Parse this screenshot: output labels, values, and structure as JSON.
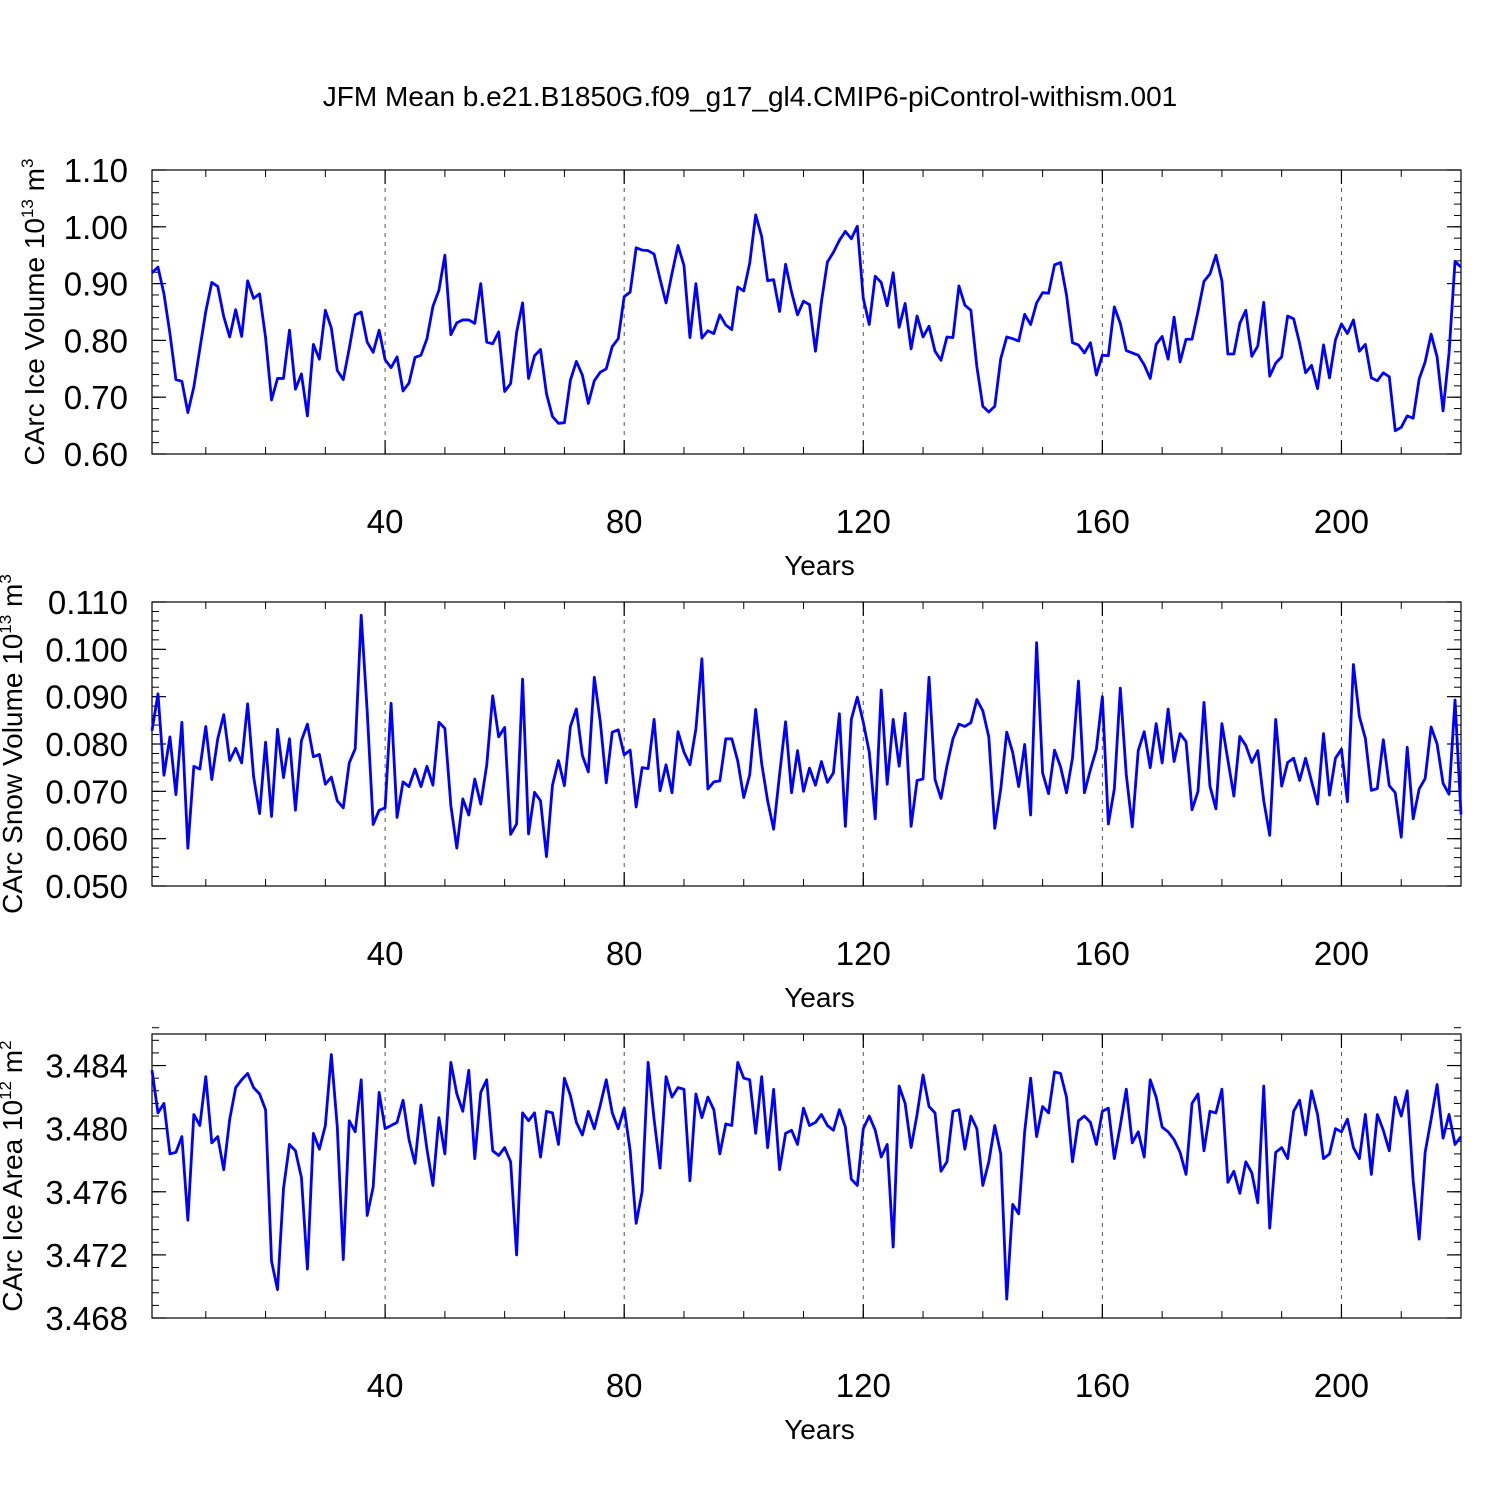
{
  "title": "JFM Mean b.e21.B1850G.f09_g17_gl4.CMIP6-piControl-withism.001",
  "chart_data": [
    {
      "type": "line",
      "xlabel": "Years",
      "ylabel": {
        "name": "CArc Ice Volume",
        "scale": "10",
        "exponent": "13",
        "unit": "m",
        "unit_exponent": "3"
      },
      "xlim": [
        1,
        220
      ],
      "ylim": [
        0.6,
        1.1
      ],
      "x_ticks": [
        "40",
        "80",
        "120",
        "160",
        "200"
      ],
      "y_ticks": [
        "0.60",
        "0.70",
        "0.80",
        "0.90",
        "1.00",
        "1.10"
      ],
      "x_gridlines": [
        40,
        80,
        120,
        160,
        200
      ],
      "line_color": "#0000ff",
      "series": [
        {
          "x_start": 1,
          "values": [
            0.919,
            0.929,
            0.882,
            0.812,
            0.731,
            0.728,
            0.673,
            0.718,
            0.785,
            0.851,
            0.902,
            0.895,
            0.842,
            0.806,
            0.854,
            0.807,
            0.905,
            0.874,
            0.882,
            0.805,
            0.695,
            0.733,
            0.733,
            0.818,
            0.714,
            0.741,
            0.667,
            0.793,
            0.767,
            0.853,
            0.822,
            0.747,
            0.731,
            0.786,
            0.845,
            0.85,
            0.797,
            0.779,
            0.818,
            0.766,
            0.752,
            0.771,
            0.711,
            0.725,
            0.77,
            0.774,
            0.803,
            0.86,
            0.888,
            0.95,
            0.81,
            0.831,
            0.836,
            0.836,
            0.83,
            0.9,
            0.797,
            0.794,
            0.815,
            0.71,
            0.724,
            0.814,
            0.866,
            0.733,
            0.773,
            0.784,
            0.706,
            0.666,
            0.654,
            0.655,
            0.73,
            0.763,
            0.739,
            0.689,
            0.729,
            0.744,
            0.75,
            0.789,
            0.803,
            0.877,
            0.885,
            0.963,
            0.959,
            0.958,
            0.952,
            0.908,
            0.866,
            0.918,
            0.967,
            0.932,
            0.805,
            0.9,
            0.804,
            0.817,
            0.812,
            0.845,
            0.827,
            0.819,
            0.894,
            0.887,
            0.936,
            1.021,
            0.983,
            0.905,
            0.907,
            0.851,
            0.934,
            0.885,
            0.845,
            0.869,
            0.863,
            0.781,
            0.868,
            0.938,
            0.955,
            0.976,
            0.992,
            0.979,
            1.001,
            0.874,
            0.828,
            0.913,
            0.902,
            0.861,
            0.919,
            0.823,
            0.865,
            0.785,
            0.843,
            0.806,
            0.825,
            0.781,
            0.765,
            0.806,
            0.805,
            0.896,
            0.862,
            0.853,
            0.754,
            0.684,
            0.674,
            0.684,
            0.768,
            0.806,
            0.803,
            0.799,
            0.846,
            0.828,
            0.866,
            0.884,
            0.883,
            0.933,
            0.937,
            0.88,
            0.796,
            0.792,
            0.778,
            0.796,
            0.739,
            0.774,
            0.773,
            0.859,
            0.83,
            0.782,
            0.778,
            0.774,
            0.757,
            0.733,
            0.793,
            0.807,
            0.767,
            0.841,
            0.762,
            0.802,
            0.802,
            0.851,
            0.904,
            0.917,
            0.95,
            0.905,
            0.776,
            0.776,
            0.83,
            0.853,
            0.772,
            0.79,
            0.867,
            0.737,
            0.76,
            0.771,
            0.843,
            0.838,
            0.795,
            0.743,
            0.756,
            0.715,
            0.792,
            0.734,
            0.801,
            0.829,
            0.812,
            0.836,
            0.781,
            0.793,
            0.734,
            0.729,
            0.743,
            0.736,
            0.641,
            0.647,
            0.667,
            0.663,
            0.732,
            0.762,
            0.811,
            0.771,
            0.676,
            0.778,
            0.939,
            0.929
          ]
        }
      ]
    },
    {
      "type": "line",
      "xlabel": "Years",
      "ylabel": {
        "name": "CArc Snow Volume",
        "scale": "10",
        "exponent": "13",
        "unit": "m",
        "unit_exponent": "3"
      },
      "xlim": [
        1,
        220
      ],
      "ylim": [
        0.05,
        0.11
      ],
      "x_ticks": [
        "40",
        "80",
        "120",
        "160",
        "200"
      ],
      "y_ticks": [
        "0.050",
        "0.060",
        "0.070",
        "0.080",
        "0.090",
        "0.100",
        "0.110"
      ],
      "x_gridlines": [
        40,
        80,
        120,
        160,
        200
      ],
      "line_color": "#0000ff",
      "series": [
        {
          "x_start": 1,
          "values": [
            0.0828,
            0.0906,
            0.0734,
            0.0815,
            0.0693,
            0.0846,
            0.058,
            0.0753,
            0.0747,
            0.0837,
            0.0725,
            0.0811,
            0.0862,
            0.0765,
            0.0791,
            0.076,
            0.0885,
            0.0731,
            0.0653,
            0.0804,
            0.0647,
            0.0831,
            0.0729,
            0.0811,
            0.066,
            0.0807,
            0.0842,
            0.0773,
            0.0778,
            0.0715,
            0.073,
            0.068,
            0.0665,
            0.076,
            0.079,
            0.1072,
            0.087,
            0.063,
            0.066,
            0.0665,
            0.0886,
            0.0645,
            0.072,
            0.071,
            0.0747,
            0.071,
            0.0753,
            0.0713,
            0.0846,
            0.0833,
            0.067,
            0.058,
            0.0684,
            0.065,
            0.0726,
            0.0673,
            0.0755,
            0.0902,
            0.0815,
            0.0835,
            0.0609,
            0.0631,
            0.0937,
            0.061,
            0.0698,
            0.068,
            0.0562,
            0.0713,
            0.0765,
            0.0712,
            0.0837,
            0.0874,
            0.0776,
            0.0741,
            0.0941,
            0.0847,
            0.0718,
            0.0825,
            0.083,
            0.0777,
            0.0787,
            0.0667,
            0.075,
            0.0748,
            0.0852,
            0.0701,
            0.0756,
            0.0697,
            0.0826,
            0.0783,
            0.0756,
            0.0832,
            0.098,
            0.0705,
            0.072,
            0.0722,
            0.0811,
            0.0811,
            0.0764,
            0.0687,
            0.0735,
            0.0873,
            0.0759,
            0.068,
            0.062,
            0.0736,
            0.0847,
            0.0697,
            0.0786,
            0.07,
            0.0749,
            0.0713,
            0.0763,
            0.0719,
            0.0739,
            0.0864,
            0.0626,
            0.0852,
            0.0899,
            0.0846,
            0.0783,
            0.0642,
            0.0914,
            0.0715,
            0.0852,
            0.0753,
            0.0865,
            0.0626,
            0.0723,
            0.0726,
            0.0941,
            0.0725,
            0.0685,
            0.0754,
            0.0811,
            0.0842,
            0.0837,
            0.0845,
            0.0894,
            0.087,
            0.0815,
            0.0622,
            0.0705,
            0.0825,
            0.0782,
            0.071,
            0.0799,
            0.065,
            0.1014,
            0.0739,
            0.0695,
            0.0787,
            0.0752,
            0.0697,
            0.077,
            0.0933,
            0.0697,
            0.0746,
            0.0789,
            0.09,
            0.0631,
            0.0705,
            0.0918,
            0.0735,
            0.0625,
            0.0786,
            0.0826,
            0.075,
            0.0843,
            0.076,
            0.0874,
            0.0763,
            0.0822,
            0.0805,
            0.0661,
            0.07,
            0.0888,
            0.0711,
            0.0663,
            0.0843,
            0.0766,
            0.069,
            0.0816,
            0.0797,
            0.0761,
            0.0786,
            0.068,
            0.0607,
            0.0852,
            0.0711,
            0.0761,
            0.077,
            0.0723,
            0.077,
            0.0721,
            0.0673,
            0.0822,
            0.0692,
            0.077,
            0.0789,
            0.0678,
            0.0968,
            0.0858,
            0.0812,
            0.0702,
            0.0706,
            0.0809,
            0.0712,
            0.0697,
            0.0603,
            0.0793,
            0.0642,
            0.0705,
            0.0727,
            0.0836,
            0.08,
            0.0717,
            0.0694,
            0.0893,
            0.0651
          ]
        }
      ]
    },
    {
      "type": "line",
      "xlabel": "Years",
      "ylabel": {
        "name": "CArc Ice Area",
        "scale": "10",
        "exponent": "12",
        "unit": "m",
        "unit_exponent": "2"
      },
      "xlim": [
        1,
        220
      ],
      "ylim": [
        3.468,
        3.486
      ],
      "x_ticks": [
        "40",
        "80",
        "120",
        "160",
        "200"
      ],
      "y_ticks": [
        "3.468",
        "3.472",
        "3.476",
        "3.480",
        "3.484"
      ],
      "x_gridlines": [
        40,
        80,
        120,
        160,
        200
      ],
      "line_color": "#0000ff",
      "series": [
        {
          "x_start": 1,
          "values": [
            3.4837,
            3.481,
            3.4816,
            3.4784,
            3.4785,
            3.4795,
            3.4742,
            3.4809,
            3.4802,
            3.4833,
            3.4791,
            3.4795,
            3.4774,
            3.4806,
            3.4826,
            3.4831,
            3.4835,
            3.4826,
            3.4822,
            3.4812,
            3.4716,
            3.4698,
            3.4762,
            3.479,
            3.4786,
            3.4769,
            3.4711,
            3.4797,
            3.4787,
            3.4802,
            3.4847,
            3.4801,
            3.4717,
            3.4805,
            3.4798,
            3.4831,
            3.4745,
            3.4763,
            3.4823,
            3.48,
            3.4802,
            3.4804,
            3.4818,
            3.4793,
            3.4778,
            3.4815,
            3.4787,
            3.4764,
            3.4807,
            3.4784,
            3.4842,
            3.4822,
            3.4811,
            3.4837,
            3.4781,
            3.4823,
            3.4831,
            3.4786,
            3.4783,
            3.4788,
            3.4779,
            3.472,
            3.481,
            3.4805,
            3.481,
            3.4782,
            3.4811,
            3.481,
            3.479,
            3.4832,
            3.4821,
            3.4804,
            3.4796,
            3.4811,
            3.48,
            3.4815,
            3.4831,
            3.481,
            3.48,
            3.4813,
            3.4786,
            3.474,
            3.476,
            3.4842,
            3.4806,
            3.4775,
            3.4833,
            3.482,
            3.4826,
            3.4825,
            3.4767,
            3.4822,
            3.4807,
            3.482,
            3.4812,
            3.4784,
            3.4803,
            3.4802,
            3.4842,
            3.4832,
            3.4831,
            3.4797,
            3.4833,
            3.4788,
            3.4825,
            3.4774,
            3.4797,
            3.4799,
            3.479,
            3.4813,
            3.4802,
            3.4804,
            3.4809,
            3.4802,
            3.4799,
            3.4812,
            3.4801,
            3.4768,
            3.4764,
            3.48,
            3.4808,
            3.4799,
            3.4782,
            3.479,
            3.4725,
            3.4827,
            3.4816,
            3.4788,
            3.4809,
            3.4834,
            3.4814,
            3.481,
            3.4773,
            3.4779,
            3.4811,
            3.4812,
            3.4787,
            3.4808,
            3.48,
            3.4764,
            3.4779,
            3.4802,
            3.4784,
            3.4692,
            3.4752,
            3.4746,
            3.4798,
            3.4832,
            3.4795,
            3.4814,
            3.481,
            3.4836,
            3.4835,
            3.482,
            3.4779,
            3.4805,
            3.4808,
            3.4804,
            3.479,
            3.4811,
            3.4813,
            3.4781,
            3.4802,
            3.4825,
            3.4791,
            3.4798,
            3.4782,
            3.4831,
            3.482,
            3.4801,
            3.4798,
            3.4793,
            3.4785,
            3.4771,
            3.4816,
            3.4822,
            3.4786,
            3.4811,
            3.481,
            3.4825,
            3.4766,
            3.4773,
            3.4759,
            3.4779,
            3.4772,
            3.4753,
            3.4827,
            3.4737,
            3.4785,
            3.4788,
            3.4781,
            3.4811,
            3.4818,
            3.4796,
            3.4824,
            3.4809,
            3.4781,
            3.4784,
            3.48,
            3.4798,
            3.4806,
            3.4788,
            3.4781,
            3.4809,
            3.4771,
            3.4809,
            3.4799,
            3.4786,
            3.482,
            3.4808,
            3.4824,
            3.4767,
            3.473,
            3.4785,
            3.4806,
            3.4828,
            3.4794,
            3.4809,
            3.479,
            3.4795
          ]
        }
      ]
    }
  ]
}
